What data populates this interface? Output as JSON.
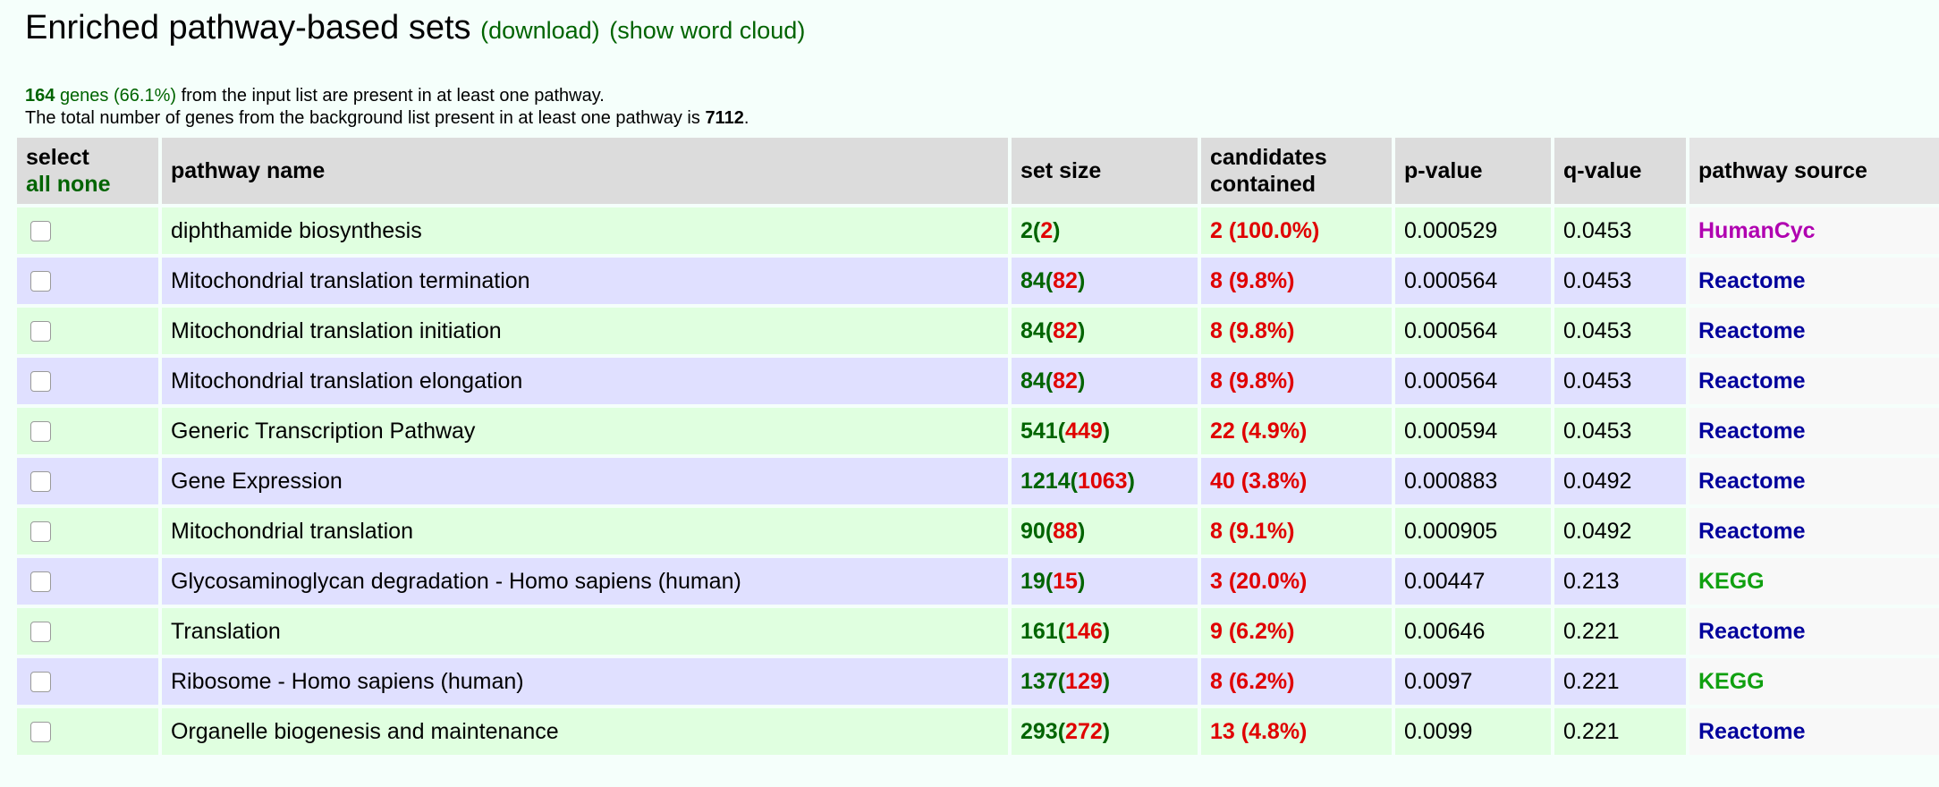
{
  "header": {
    "title": "Enriched pathway-based sets",
    "download_link": "(download)",
    "wordcloud_link": "(show word cloud)"
  },
  "summary": {
    "gene_count": "164",
    "genes_word": "genes",
    "gene_pct": "(66.1%)",
    "line1_rest": "from the input list are present in at least one pathway.",
    "line2_prefix": "The total number of genes from the background list present in at least one pathway is",
    "background_count": "7112",
    "line2_suffix": "."
  },
  "table": {
    "headers": {
      "select": "select",
      "select_all": "all",
      "select_none": "none",
      "pathway_name": "pathway name",
      "set_size": "set size",
      "candidates_line1": "candidates",
      "candidates_line2": "contained",
      "p_value": "p-value",
      "q_value": "q-value",
      "source": "pathway source"
    },
    "rows": [
      {
        "name": "diphthamide biosynthesis",
        "size": "2",
        "size_bg": "2",
        "cand": "2 (100.0%)",
        "p": "0.000529",
        "q": "0.0453",
        "source": "HumanCyc"
      },
      {
        "name": "Mitochondrial translation termination",
        "size": "84",
        "size_bg": "82",
        "cand": "8 (9.8%)",
        "p": "0.000564",
        "q": "0.0453",
        "source": "Reactome"
      },
      {
        "name": "Mitochondrial translation initiation",
        "size": "84",
        "size_bg": "82",
        "cand": "8 (9.8%)",
        "p": "0.000564",
        "q": "0.0453",
        "source": "Reactome"
      },
      {
        "name": "Mitochondrial translation elongation",
        "size": "84",
        "size_bg": "82",
        "cand": "8 (9.8%)",
        "p": "0.000564",
        "q": "0.0453",
        "source": "Reactome"
      },
      {
        "name": "Generic Transcription Pathway",
        "size": "541",
        "size_bg": "449",
        "cand": "22 (4.9%)",
        "p": "0.000594",
        "q": "0.0453",
        "source": "Reactome"
      },
      {
        "name": "Gene Expression",
        "size": "1214",
        "size_bg": "1063",
        "cand": "40 (3.8%)",
        "p": "0.000883",
        "q": "0.0492",
        "source": "Reactome"
      },
      {
        "name": "Mitochondrial translation",
        "size": "90",
        "size_bg": "88",
        "cand": "8 (9.1%)",
        "p": "0.000905",
        "q": "0.0492",
        "source": "Reactome"
      },
      {
        "name": "Glycosaminoglycan degradation - Homo sapiens (human)",
        "size": "19",
        "size_bg": "15",
        "cand": "3 (20.0%)",
        "p": "0.00447",
        "q": "0.213",
        "source": "KEGG"
      },
      {
        "name": "Translation",
        "size": "161",
        "size_bg": "146",
        "cand": "9 (6.2%)",
        "p": "0.00646",
        "q": "0.221",
        "source": "Reactome"
      },
      {
        "name": "Ribosome - Homo sapiens (human)",
        "size": "137",
        "size_bg": "129",
        "cand": "8 (6.2%)",
        "p": "0.0097",
        "q": "0.221",
        "source": "KEGG"
      },
      {
        "name": "Organelle biogenesis and maintenance",
        "size": "293",
        "size_bg": "272",
        "cand": "13 (4.8%)",
        "p": "0.0099",
        "q": "0.221",
        "source": "Reactome"
      }
    ]
  },
  "colors": {
    "link_green": "#006400",
    "value_red": "#e00000",
    "source_colors": {
      "HumanCyc": "#b000b0",
      "Reactome": "#00009c",
      "KEGG": "#10a010"
    },
    "row_green": "#e0ffe0",
    "row_violet": "#e0e0ff",
    "header_gray": "#dcdcdc"
  }
}
